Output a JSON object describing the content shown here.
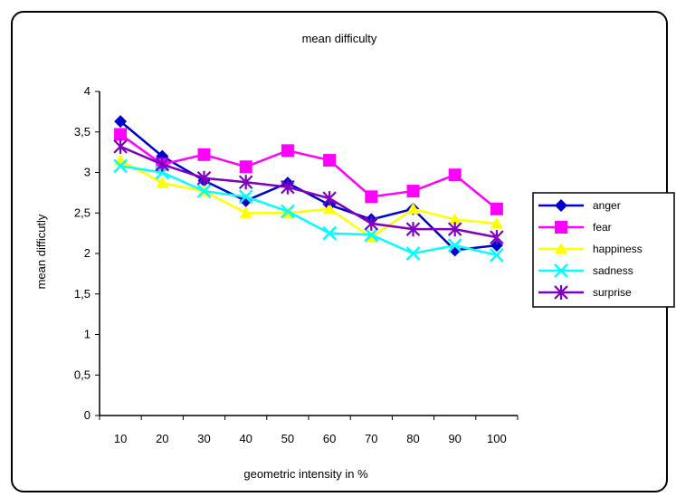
{
  "chart_data": {
    "type": "line",
    "title": "mean difficulty",
    "xlabel": "geometric intensity in %",
    "ylabel": "mean difficutly",
    "x": [
      10,
      20,
      30,
      40,
      50,
      60,
      70,
      80,
      90,
      100
    ],
    "x_tick_labels": [
      "10",
      "20",
      "30",
      "40",
      "50",
      "60",
      "70",
      "80",
      "90",
      "100"
    ],
    "ylim": [
      0,
      4
    ],
    "y_ticks": [
      0,
      0.5,
      1,
      1.5,
      2,
      2.5,
      3,
      3.5,
      4
    ],
    "y_tick_labels": [
      "0",
      "0,5",
      "1",
      "1,5",
      "2",
      "2,5",
      "3",
      "3,5",
      "4"
    ],
    "grid": false,
    "legend_position": "right",
    "series": [
      {
        "name": "anger",
        "color": "#0000cc",
        "marker": "diamond",
        "values": [
          3.63,
          3.2,
          2.9,
          2.65,
          2.87,
          2.6,
          2.42,
          2.55,
          2.04,
          2.1
        ]
      },
      {
        "name": "fear",
        "color": "#ff00ff",
        "marker": "square",
        "values": [
          3.47,
          3.1,
          3.22,
          3.07,
          3.27,
          3.15,
          2.7,
          2.77,
          2.97,
          2.55
        ]
      },
      {
        "name": "happiness",
        "color": "#ffff00",
        "marker": "triangle",
        "values": [
          3.15,
          2.87,
          2.77,
          2.5,
          2.5,
          2.55,
          2.2,
          2.55,
          2.42,
          2.37
        ]
      },
      {
        "name": "sadness",
        "color": "#00ffff",
        "marker": "x",
        "values": [
          3.08,
          3.0,
          2.77,
          2.7,
          2.52,
          2.25,
          2.23,
          2.0,
          2.1,
          1.98
        ]
      },
      {
        "name": "surprise",
        "color": "#7f00bf",
        "marker": "asterisk",
        "values": [
          3.32,
          3.1,
          2.93,
          2.88,
          2.82,
          2.68,
          2.37,
          2.3,
          2.3,
          2.2
        ]
      }
    ]
  }
}
